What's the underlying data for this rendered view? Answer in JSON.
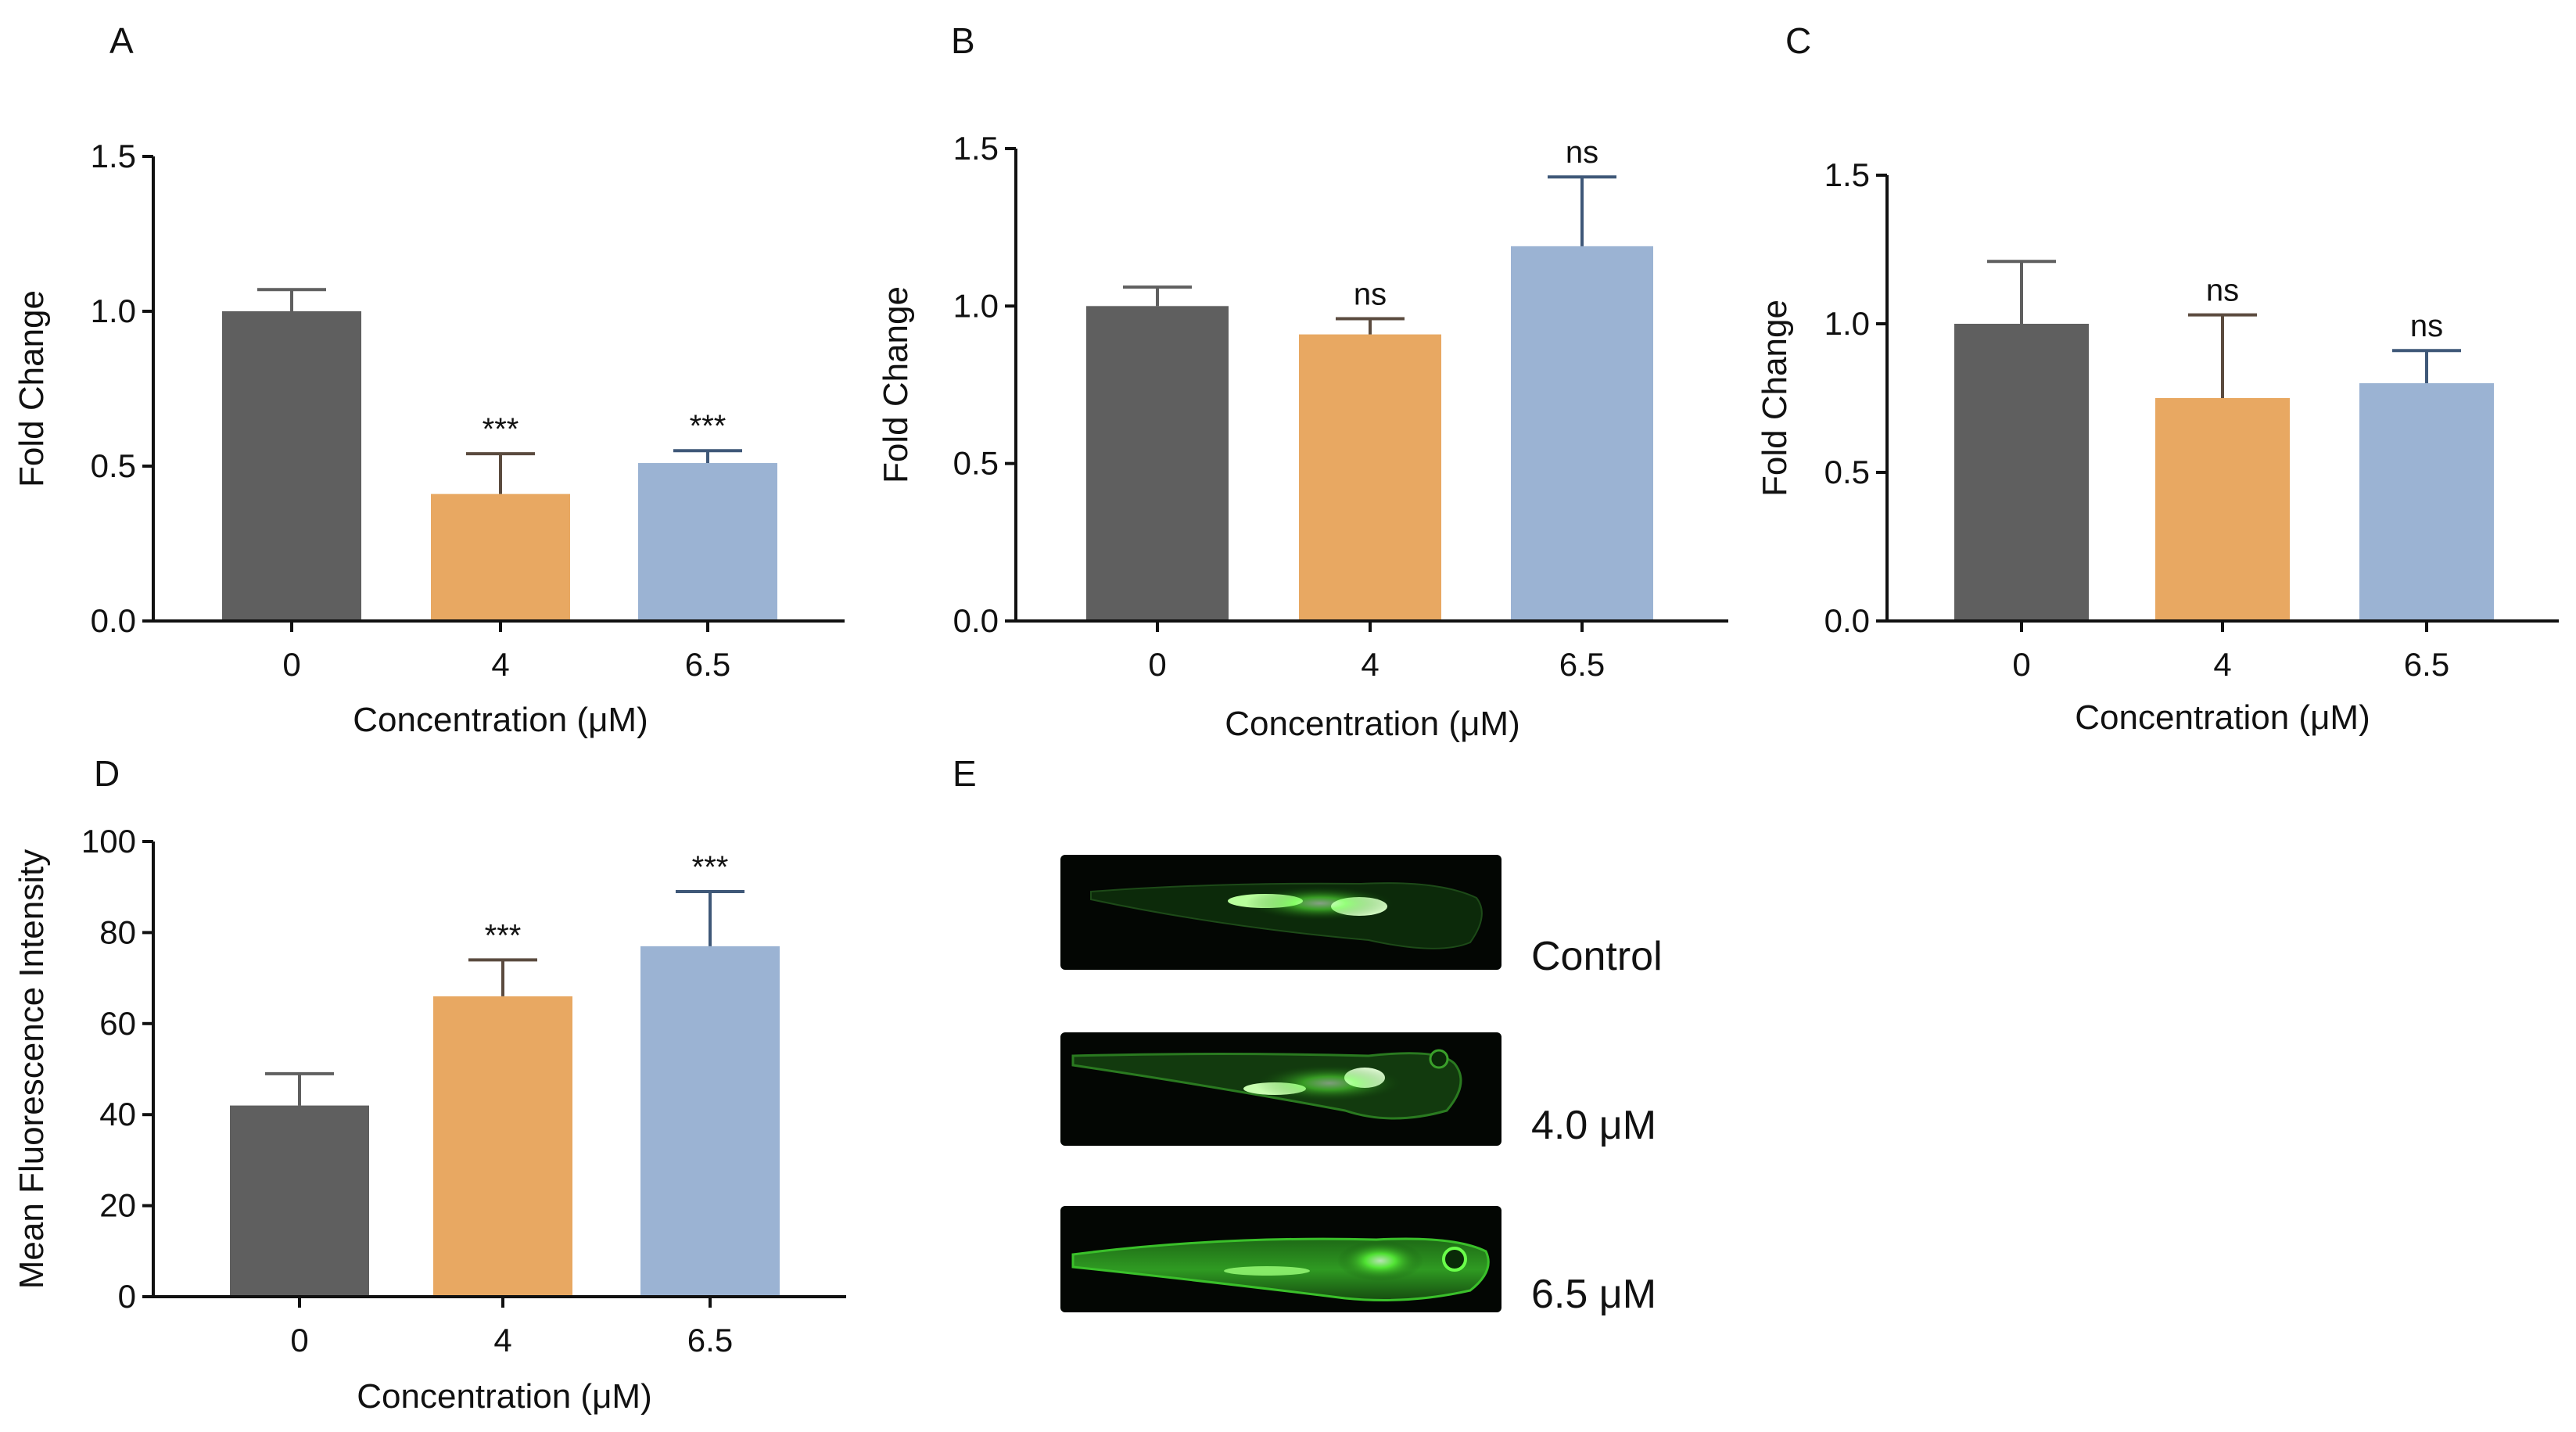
{
  "colors": {
    "control": "#5f5f5f",
    "dose_4": "#e8a862",
    "dose_6_5": "#9bb3d3",
    "control_err": "#5f5f5f",
    "dose_4_err": "#5b4b3f",
    "dose_6_5_err": "#3f5878"
  },
  "chart_data": [
    {
      "panel": "A",
      "type": "bar",
      "categories": [
        "0",
        "4",
        "6.5"
      ],
      "values": [
        1.0,
        0.41,
        0.51
      ],
      "errors": [
        0.07,
        0.13,
        0.04
      ],
      "significance": [
        "",
        "***",
        "***"
      ],
      "xlabel": "Concentration (μM)",
      "ylabel": "Fold Change",
      "ylim": [
        0,
        1.5
      ],
      "yticks": [
        0.0,
        0.5,
        1.0,
        1.5
      ],
      "ytick_labels": [
        "0.0",
        "0.5",
        "1.0",
        "1.5"
      ]
    },
    {
      "panel": "B",
      "type": "bar",
      "categories": [
        "0",
        "4",
        "6.5"
      ],
      "values": [
        1.0,
        0.91,
        1.19
      ],
      "errors": [
        0.06,
        0.05,
        0.22
      ],
      "significance": [
        "",
        "ns",
        "ns"
      ],
      "xlabel": "Concentration (μM)",
      "ylabel": "Fold Change",
      "ylim": [
        0,
        1.5
      ],
      "yticks": [
        0.0,
        0.5,
        1.0,
        1.5
      ],
      "ytick_labels": [
        "0.0",
        "0.5",
        "1.0",
        "1.5"
      ]
    },
    {
      "panel": "C",
      "type": "bar",
      "categories": [
        "0",
        "4",
        "6.5"
      ],
      "values": [
        1.0,
        0.75,
        0.8
      ],
      "errors": [
        0.21,
        0.28,
        0.11
      ],
      "significance": [
        "",
        "ns",
        "ns"
      ],
      "xlabel": "Concentration (μM)",
      "ylabel": "Fold Change",
      "ylim": [
        0,
        1.5
      ],
      "yticks": [
        0.0,
        0.5,
        1.0,
        1.5
      ],
      "ytick_labels": [
        "0.0",
        "0.5",
        "1.0",
        "1.5"
      ]
    },
    {
      "panel": "D",
      "type": "bar",
      "categories": [
        "0",
        "4",
        "6.5"
      ],
      "values": [
        42,
        66,
        77
      ],
      "errors": [
        7,
        8,
        12
      ],
      "significance": [
        "",
        "***",
        "***"
      ],
      "xlabel": "Concentration (μM)",
      "ylabel": "Mean Fluorescence Intensity",
      "ylim": [
        0,
        100
      ],
      "yticks": [
        0,
        20,
        40,
        60,
        80,
        100
      ],
      "ytick_labels": [
        "0",
        "20",
        "40",
        "60",
        "80",
        "100"
      ]
    }
  ],
  "panel_e": {
    "letter": "E",
    "images": [
      {
        "label": "Control"
      },
      {
        "label": "4.0 μM"
      },
      {
        "label": "6.5 μM"
      }
    ]
  }
}
